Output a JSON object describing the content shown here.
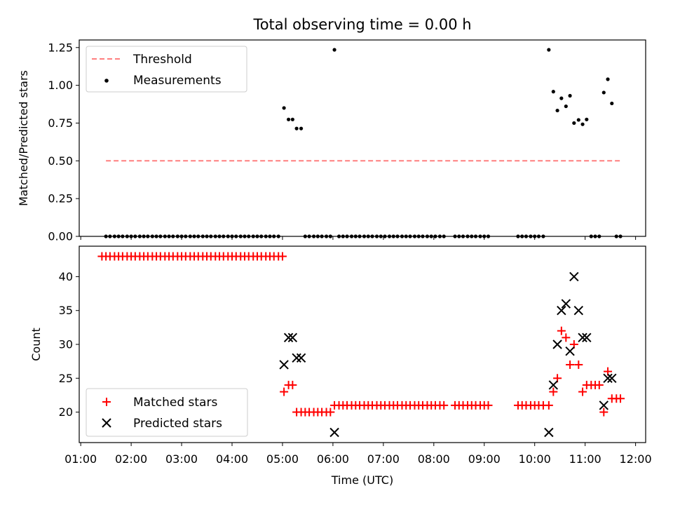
{
  "chart_data": [
    {
      "type": "scatter",
      "title": "Total observing time = 0.00 h",
      "xlabel": "",
      "ylabel": "Matched/Predicted stars",
      "ylim": [
        0,
        1.3
      ],
      "yticks": [
        "0.00",
        "0.25",
        "0.50",
        "0.75",
        "1.00",
        "1.25"
      ],
      "yticks_values": [
        0,
        0.25,
        0.5,
        0.75,
        1.0,
        1.25
      ],
      "legend": "upper-left",
      "threshold": {
        "name": "Threshold",
        "value": 0.5,
        "x_start": 1.5,
        "x_end": 11.7,
        "color": "#ff7f7f"
      },
      "series": [
        {
          "name": "Measurements",
          "color": "#000000",
          "points": [
            [
              1.5,
              0
            ],
            [
              1.58,
              0
            ],
            [
              1.67,
              0
            ],
            [
              1.75,
              0
            ],
            [
              1.83,
              0
            ],
            [
              1.92,
              0
            ],
            [
              2.0,
              0
            ],
            [
              2.08,
              0
            ],
            [
              2.17,
              0
            ],
            [
              2.25,
              0
            ],
            [
              2.33,
              0
            ],
            [
              2.42,
              0
            ],
            [
              2.5,
              0
            ],
            [
              2.58,
              0
            ],
            [
              2.67,
              0
            ],
            [
              2.75,
              0
            ],
            [
              2.83,
              0
            ],
            [
              2.92,
              0
            ],
            [
              3.0,
              0
            ],
            [
              3.08,
              0
            ],
            [
              3.17,
              0
            ],
            [
              3.25,
              0
            ],
            [
              3.33,
              0
            ],
            [
              3.42,
              0
            ],
            [
              3.5,
              0
            ],
            [
              3.58,
              0
            ],
            [
              3.67,
              0
            ],
            [
              3.75,
              0
            ],
            [
              3.83,
              0
            ],
            [
              3.92,
              0
            ],
            [
              4.0,
              0
            ],
            [
              4.08,
              0
            ],
            [
              4.17,
              0
            ],
            [
              4.25,
              0
            ],
            [
              4.33,
              0
            ],
            [
              4.42,
              0
            ],
            [
              4.5,
              0
            ],
            [
              4.58,
              0
            ],
            [
              4.67,
              0
            ],
            [
              4.75,
              0
            ],
            [
              4.83,
              0
            ],
            [
              4.92,
              0
            ],
            [
              5.03,
              0.85
            ],
            [
              5.12,
              0.774
            ],
            [
              5.2,
              0.774
            ],
            [
              5.28,
              0.714
            ],
            [
              5.37,
              0.714
            ],
            [
              5.45,
              0
            ],
            [
              5.53,
              0
            ],
            [
              5.62,
              0
            ],
            [
              5.7,
              0
            ],
            [
              5.78,
              0
            ],
            [
              5.87,
              0
            ],
            [
              5.95,
              0
            ],
            [
              6.03,
              1.235
            ],
            [
              6.12,
              0
            ],
            [
              6.2,
              0
            ],
            [
              6.28,
              0
            ],
            [
              6.37,
              0
            ],
            [
              6.45,
              0
            ],
            [
              6.53,
              0
            ],
            [
              6.62,
              0
            ],
            [
              6.7,
              0
            ],
            [
              6.78,
              0
            ],
            [
              6.87,
              0
            ],
            [
              6.95,
              0
            ],
            [
              7.03,
              0
            ],
            [
              7.12,
              0
            ],
            [
              7.2,
              0
            ],
            [
              7.28,
              0
            ],
            [
              7.37,
              0
            ],
            [
              7.45,
              0
            ],
            [
              7.53,
              0
            ],
            [
              7.62,
              0
            ],
            [
              7.7,
              0
            ],
            [
              7.78,
              0
            ],
            [
              7.87,
              0
            ],
            [
              7.95,
              0
            ],
            [
              8.03,
              0
            ],
            [
              8.12,
              0
            ],
            [
              8.2,
              0
            ],
            [
              8.42,
              0
            ],
            [
              8.5,
              0
            ],
            [
              8.58,
              0
            ],
            [
              8.67,
              0
            ],
            [
              8.75,
              0
            ],
            [
              8.83,
              0
            ],
            [
              8.92,
              0
            ],
            [
              9.0,
              0
            ],
            [
              9.08,
              0
            ],
            [
              9.67,
              0
            ],
            [
              9.75,
              0
            ],
            [
              9.83,
              0
            ],
            [
              9.92,
              0
            ],
            [
              10.0,
              0
            ],
            [
              10.08,
              0
            ],
            [
              10.17,
              0
            ],
            [
              10.28,
              1.235
            ],
            [
              10.37,
              0.958
            ],
            [
              10.45,
              0.833
            ],
            [
              10.53,
              0.914
            ],
            [
              10.62,
              0.861
            ],
            [
              10.7,
              0.931
            ],
            [
              10.78,
              0.75
            ],
            [
              10.87,
              0.771
            ],
            [
              10.95,
              0.742
            ],
            [
              11.03,
              0.774
            ],
            [
              11.12,
              0
            ],
            [
              11.2,
              0
            ],
            [
              11.28,
              0
            ],
            [
              11.37,
              0.952
            ],
            [
              11.45,
              1.04
            ],
            [
              11.53,
              0.88
            ],
            [
              11.62,
              0
            ],
            [
              11.7,
              0
            ]
          ]
        }
      ]
    },
    {
      "type": "scatter",
      "title": "",
      "xlabel": "Time (UTC)",
      "ylabel": "Count",
      "xlim": [
        0.97,
        12.2
      ],
      "xticks": [
        "01:00",
        "02:00",
        "03:00",
        "04:00",
        "05:00",
        "06:00",
        "07:00",
        "08:00",
        "09:00",
        "10:00",
        "11:00",
        "12:00"
      ],
      "xticks_values": [
        1,
        2,
        3,
        4,
        5,
        6,
        7,
        8,
        9,
        10,
        11,
        12
      ],
      "ylim": [
        15.5,
        44.5
      ],
      "yticks": [
        "20",
        "25",
        "30",
        "35",
        "40"
      ],
      "yticks_values": [
        20,
        25,
        30,
        35,
        40
      ],
      "legend": "lower-left",
      "series": [
        {
          "name": "Matched stars",
          "marker": "plus",
          "color": "#ff0000",
          "points": [
            [
              1.42,
              43
            ],
            [
              1.5,
              43
            ],
            [
              1.58,
              43
            ],
            [
              1.67,
              43
            ],
            [
              1.75,
              43
            ],
            [
              1.83,
              43
            ],
            [
              1.92,
              43
            ],
            [
              2.0,
              43
            ],
            [
              2.08,
              43
            ],
            [
              2.17,
              43
            ],
            [
              2.25,
              43
            ],
            [
              2.33,
              43
            ],
            [
              2.42,
              43
            ],
            [
              2.5,
              43
            ],
            [
              2.58,
              43
            ],
            [
              2.67,
              43
            ],
            [
              2.75,
              43
            ],
            [
              2.83,
              43
            ],
            [
              2.92,
              43
            ],
            [
              3.0,
              43
            ],
            [
              3.08,
              43
            ],
            [
              3.17,
              43
            ],
            [
              3.25,
              43
            ],
            [
              3.33,
              43
            ],
            [
              3.42,
              43
            ],
            [
              3.5,
              43
            ],
            [
              3.58,
              43
            ],
            [
              3.67,
              43
            ],
            [
              3.75,
              43
            ],
            [
              3.83,
              43
            ],
            [
              3.92,
              43
            ],
            [
              4.0,
              43
            ],
            [
              4.08,
              43
            ],
            [
              4.17,
              43
            ],
            [
              4.25,
              43
            ],
            [
              4.33,
              43
            ],
            [
              4.42,
              43
            ],
            [
              4.5,
              43
            ],
            [
              4.58,
              43
            ],
            [
              4.67,
              43
            ],
            [
              4.75,
              43
            ],
            [
              4.83,
              43
            ],
            [
              4.92,
              43
            ],
            [
              5.0,
              43
            ],
            [
              5.03,
              23
            ],
            [
              5.12,
              24
            ],
            [
              5.2,
              24
            ],
            [
              5.28,
              20
            ],
            [
              5.37,
              20
            ],
            [
              5.45,
              20
            ],
            [
              5.53,
              20
            ],
            [
              5.62,
              20
            ],
            [
              5.7,
              20
            ],
            [
              5.78,
              20
            ],
            [
              5.87,
              20
            ],
            [
              5.95,
              20
            ],
            [
              6.03,
              21
            ],
            [
              6.12,
              21
            ],
            [
              6.2,
              21
            ],
            [
              6.28,
              21
            ],
            [
              6.37,
              21
            ],
            [
              6.45,
              21
            ],
            [
              6.53,
              21
            ],
            [
              6.62,
              21
            ],
            [
              6.7,
              21
            ],
            [
              6.78,
              21
            ],
            [
              6.87,
              21
            ],
            [
              6.95,
              21
            ],
            [
              7.03,
              21
            ],
            [
              7.12,
              21
            ],
            [
              7.2,
              21
            ],
            [
              7.28,
              21
            ],
            [
              7.37,
              21
            ],
            [
              7.45,
              21
            ],
            [
              7.53,
              21
            ],
            [
              7.62,
              21
            ],
            [
              7.7,
              21
            ],
            [
              7.78,
              21
            ],
            [
              7.87,
              21
            ],
            [
              7.95,
              21
            ],
            [
              8.03,
              21
            ],
            [
              8.12,
              21
            ],
            [
              8.2,
              21
            ],
            [
              8.42,
              21
            ],
            [
              8.5,
              21
            ],
            [
              8.58,
              21
            ],
            [
              8.67,
              21
            ],
            [
              8.75,
              21
            ],
            [
              8.83,
              21
            ],
            [
              8.92,
              21
            ],
            [
              9.0,
              21
            ],
            [
              9.08,
              21
            ],
            [
              9.67,
              21
            ],
            [
              9.75,
              21
            ],
            [
              9.83,
              21
            ],
            [
              9.92,
              21
            ],
            [
              10.0,
              21
            ],
            [
              10.08,
              21
            ],
            [
              10.17,
              21
            ],
            [
              10.28,
              21
            ],
            [
              10.37,
              23
            ],
            [
              10.45,
              25
            ],
            [
              10.53,
              32
            ],
            [
              10.62,
              31
            ],
            [
              10.7,
              27
            ],
            [
              10.78,
              30
            ],
            [
              10.87,
              27
            ],
            [
              10.95,
              23
            ],
            [
              11.03,
              24
            ],
            [
              11.12,
              24
            ],
            [
              11.2,
              24
            ],
            [
              11.28,
              24
            ],
            [
              11.37,
              20
            ],
            [
              11.45,
              26
            ],
            [
              11.53,
              22
            ],
            [
              11.62,
              22
            ],
            [
              11.7,
              22
            ]
          ]
        },
        {
          "name": "Predicted stars",
          "marker": "x",
          "color": "#000000",
          "points": [
            [
              5.03,
              27
            ],
            [
              5.12,
              31
            ],
            [
              5.2,
              31
            ],
            [
              5.28,
              28
            ],
            [
              5.37,
              28
            ],
            [
              6.03,
              17
            ],
            [
              10.28,
              17
            ],
            [
              10.37,
              24
            ],
            [
              10.45,
              30
            ],
            [
              10.53,
              35
            ],
            [
              10.62,
              36
            ],
            [
              10.7,
              29
            ],
            [
              10.78,
              40
            ],
            [
              10.87,
              35
            ],
            [
              10.95,
              31
            ],
            [
              11.03,
              31
            ],
            [
              11.37,
              21
            ],
            [
              11.45,
              25
            ],
            [
              11.53,
              25
            ]
          ]
        }
      ]
    }
  ]
}
